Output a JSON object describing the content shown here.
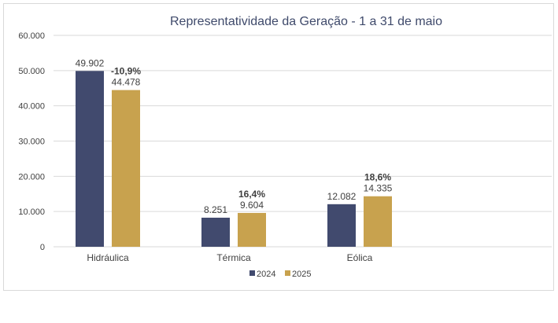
{
  "chart_data": {
    "type": "bar",
    "title": "Representatividade da Geração -  1 a 31 de maio",
    "categories": [
      "Hidráulica",
      "Térmica",
      "Eólica"
    ],
    "series": [
      {
        "name": "2024",
        "color": "#414a6e",
        "values": [
          49902,
          8251,
          12082
        ],
        "labels": [
          "49.902",
          "8.251",
          "12.082"
        ]
      },
      {
        "name": "2025",
        "color": "#c8a24e",
        "values": [
          44478,
          9604,
          14335
        ],
        "labels": [
          "44.478",
          "9.604",
          "14.335"
        ]
      }
    ],
    "change_labels": [
      "-10,9%",
      "16,4%",
      "18,6%"
    ],
    "ylim": [
      0,
      60000
    ],
    "yticks": [
      0,
      10000,
      20000,
      30000,
      40000,
      50000,
      60000
    ],
    "ytick_labels": [
      "0",
      "10.000",
      "20.000",
      "30.000",
      "40.000",
      "50.000",
      "60.000"
    ],
    "grid": true,
    "legend_position": "bottom"
  }
}
